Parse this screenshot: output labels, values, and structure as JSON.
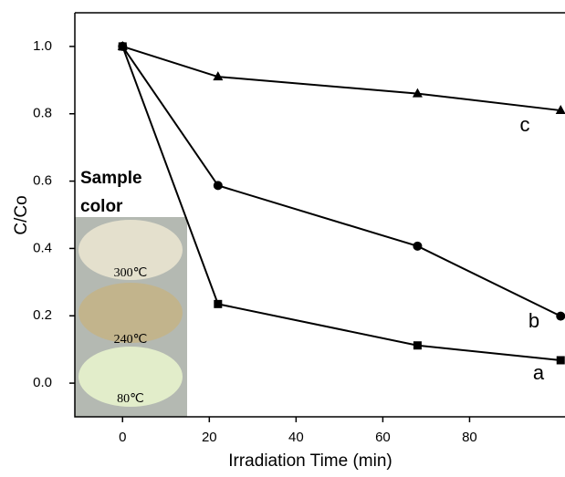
{
  "chart_data": {
    "type": "line",
    "x_label": "Irradiation Time (min)",
    "y_label": "C/Co",
    "x": [
      0,
      22,
      68,
      101
    ],
    "series": [
      {
        "name": "a",
        "color": "#000000",
        "marker": "square",
        "values": [
          1.0,
          0.235,
          0.112,
          0.068
        ]
      },
      {
        "name": "b",
        "color": "#000000",
        "marker": "circle",
        "values": [
          1.0,
          0.587,
          0.407,
          0.199
        ]
      },
      {
        "name": "c",
        "color": "#000000",
        "marker": "triangle",
        "values": [
          1.0,
          0.91,
          0.86,
          0.81
        ]
      }
    ],
    "xlim": [
      -11,
      102
    ],
    "xticks": [
      0,
      20,
      40,
      60,
      80
    ],
    "ylim": [
      -0.1,
      1.1
    ],
    "yticks": [
      {
        "value": 0,
        "label": "0.0"
      },
      {
        "value": 0.2,
        "label": "0.2"
      },
      {
        "value": 0.4,
        "label": "0.4"
      },
      {
        "value": 0.6,
        "label": "0.6"
      },
      {
        "value": 0.8,
        "label": "0.8"
      },
      {
        "value": 1,
        "label": "1.0"
      }
    ],
    "grid": false,
    "inset": {
      "title_lines": [
        "Sample",
        "color"
      ],
      "labels": [
        "300℃",
        "240℃",
        "80℃"
      ]
    }
  }
}
